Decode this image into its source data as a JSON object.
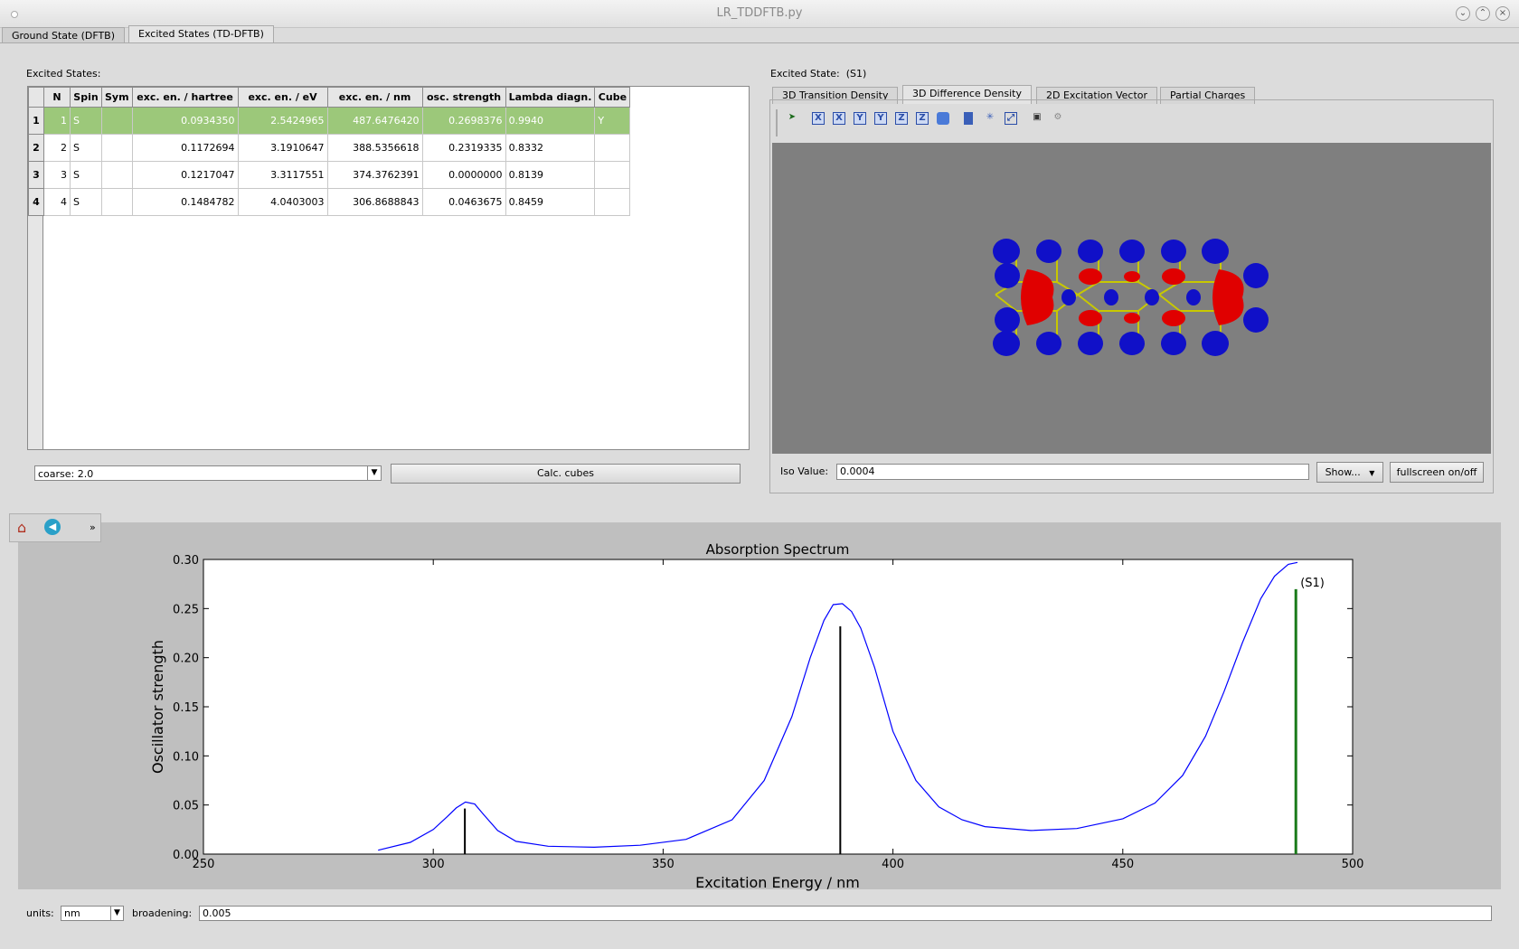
{
  "window": {
    "title": "LR_TDDFTB.py"
  },
  "main_tabs": [
    {
      "label": "Ground State (DFTB)"
    },
    {
      "label": "Excited States (TD-DFTB)"
    }
  ],
  "excited_states": {
    "section_label": "Excited States:",
    "columns": [
      "N",
      "Spin",
      "Sym",
      "exc. en. / hartree",
      "exc. en. / eV",
      "exc. en. / nm",
      "osc. strength",
      "Lambda diagn.",
      "Cube"
    ],
    "rows": [
      {
        "row_header": "1",
        "N": "1",
        "Spin": "S",
        "Sym": "",
        "hartree": "0.0934350",
        "eV": "2.5424965",
        "nm": "487.6476420",
        "osc": "0.2698376",
        "lambda": "0.9940",
        "cube": "Y"
      },
      {
        "row_header": "2",
        "N": "2",
        "Spin": "S",
        "Sym": "",
        "hartree": "0.1172694",
        "eV": "3.1910647",
        "nm": "388.5356618",
        "osc": "0.2319335",
        "lambda": "0.8332",
        "cube": ""
      },
      {
        "row_header": "3",
        "N": "3",
        "Spin": "S",
        "Sym": "",
        "hartree": "0.1217047",
        "eV": "3.3117551",
        "nm": "374.3762391",
        "osc": "0.0000000",
        "lambda": "0.8139",
        "cube": ""
      },
      {
        "row_header": "4",
        "N": "4",
        "Spin": "S",
        "Sym": "",
        "hartree": "0.1484782",
        "eV": "4.0403003",
        "nm": "306.8688843",
        "osc": "0.0463675",
        "lambda": "0.8459",
        "cube": ""
      }
    ],
    "selected_row": 1,
    "grid_combo": "coarse: 2.0",
    "calc_button": "Calc. cubes"
  },
  "viewer": {
    "state_label": "Excited State:",
    "state_value": "(S1)",
    "tabs": [
      {
        "label": "3D Transition Density"
      },
      {
        "label": "3D Difference Density"
      },
      {
        "label": "2D Excitation Vector"
      },
      {
        "label": "Partial Charges"
      }
    ],
    "active_tab": 1,
    "iso_label": "Iso Value:",
    "iso_value": "0.0004",
    "show_button": "Show...",
    "fullscreen_button": "fullscreen on/off",
    "toolbar_axis_labels": [
      "X",
      "X",
      "Y",
      "Y",
      "Z",
      "Z"
    ]
  },
  "chart_data": {
    "type": "line",
    "title": "Absorption Spectrum",
    "xlabel": "Excitation Energy / nm",
    "ylabel": "Oscillator strength",
    "xlim": [
      250,
      500
    ],
    "ylim": [
      0,
      0.3
    ],
    "xticks": [
      "250",
      "300",
      "350",
      "400",
      "450",
      "500"
    ],
    "yticks": [
      "0.00",
      "0.05",
      "0.10",
      "0.15",
      "0.20",
      "0.25",
      "0.30"
    ],
    "curve": {
      "color": "#0000ff",
      "x": [
        288,
        295,
        300,
        303,
        305,
        307,
        309,
        311,
        314,
        318,
        325,
        335,
        345,
        355,
        365,
        372,
        378,
        382,
        385,
        387,
        389,
        391,
        393,
        396,
        400,
        405,
        410,
        415,
        420,
        430,
        440,
        450,
        457,
        463,
        468,
        472,
        476,
        480,
        483,
        486,
        488
      ],
      "y": [
        0.004,
        0.012,
        0.025,
        0.038,
        0.047,
        0.053,
        0.051,
        0.04,
        0.024,
        0.013,
        0.008,
        0.007,
        0.009,
        0.015,
        0.035,
        0.075,
        0.14,
        0.2,
        0.238,
        0.254,
        0.255,
        0.247,
        0.23,
        0.19,
        0.125,
        0.075,
        0.048,
        0.035,
        0.028,
        0.024,
        0.026,
        0.036,
        0.052,
        0.08,
        0.12,
        0.165,
        0.215,
        0.26,
        0.283,
        0.295,
        0.297
      ]
    },
    "sticks": [
      {
        "x": 487.65,
        "y": 0.2698,
        "color": "#1a7a1a",
        "label": "(S1)"
      },
      {
        "x": 388.54,
        "y": 0.2319,
        "color": "#000000"
      },
      {
        "x": 374.38,
        "y": 0.0,
        "color": "#000000"
      },
      {
        "x": 306.87,
        "y": 0.0464,
        "color": "#000000"
      }
    ]
  },
  "bottom": {
    "units_label": "units:",
    "units_value": "nm",
    "broadening_label": "broadening:",
    "broadening_value": "0.005"
  }
}
